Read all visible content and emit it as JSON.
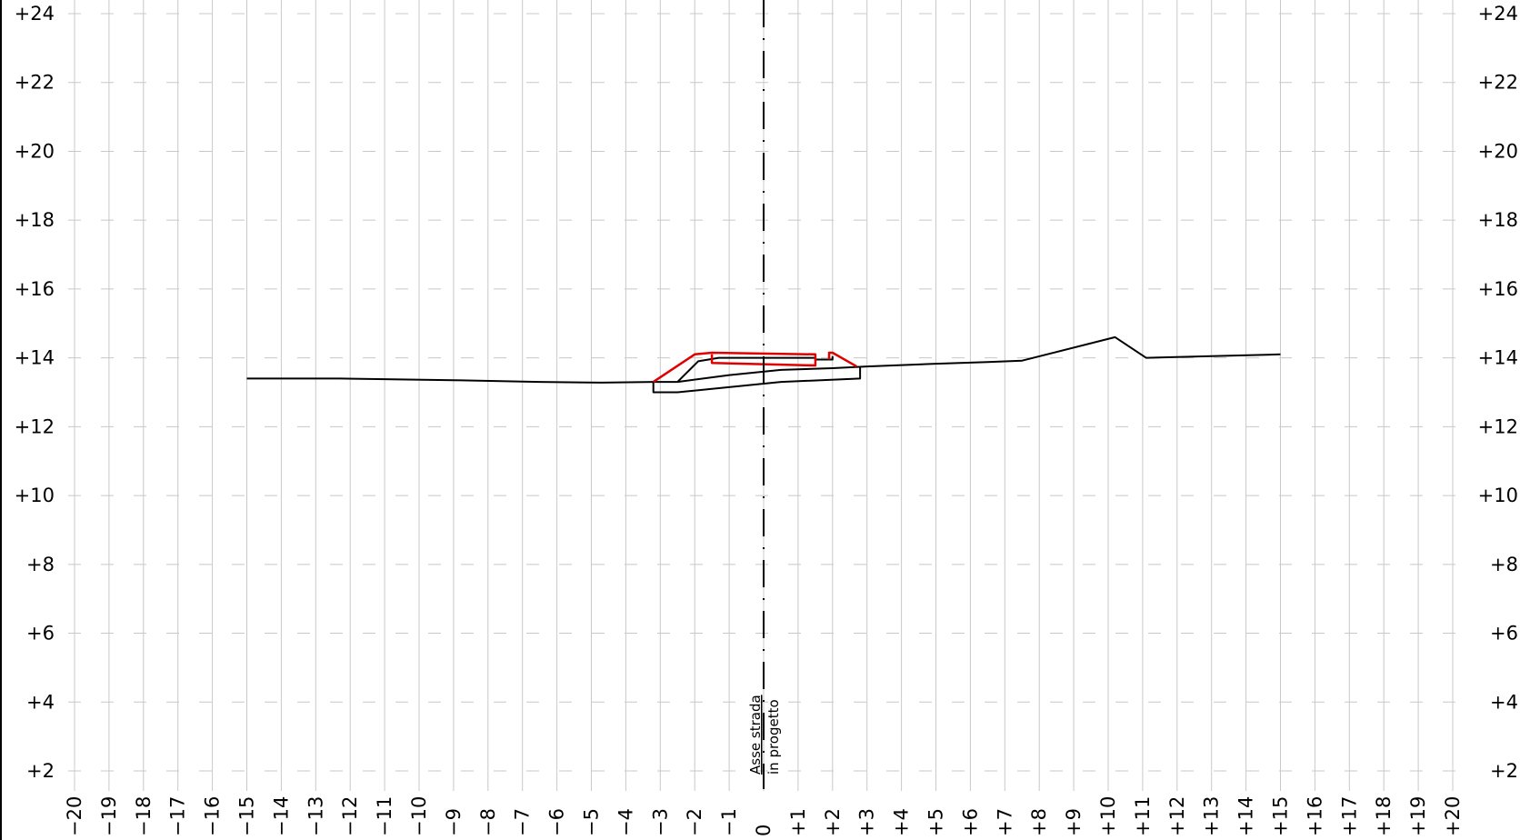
{
  "chart_data": {
    "type": "line",
    "title": "",
    "xlabel": "",
    "ylabel": "",
    "xlim": [
      -20,
      20
    ],
    "ylim": [
      2,
      24
    ],
    "grid": true,
    "x_tick_labels": [
      "−20",
      "−19",
      "−18",
      "−17",
      "−16",
      "−15",
      "−14",
      "−13",
      "−12",
      "−11",
      "−10",
      "−9",
      "−8",
      "−7",
      "−6",
      "−5",
      "−4",
      "−3",
      "−2",
      "−1",
      "0",
      "+1",
      "+2",
      "+3",
      "+4",
      "+5",
      "+6",
      "+7",
      "+8",
      "+9",
      "+10",
      "+11",
      "+12",
      "+13",
      "+14",
      "+15",
      "+16",
      "+17",
      "+18",
      "+19",
      "+20"
    ],
    "y_tick_labels": [
      "+2",
      "+4",
      "+6",
      "+8",
      "+10",
      "+12",
      "+14",
      "+16",
      "+18",
      "+20",
      "+22",
      "+24"
    ],
    "axis_label_lines": [
      "Asse strada",
      "in progetto"
    ],
    "colors": {
      "grid": "#c8c8c8",
      "existing": "#000000",
      "project": "#e00000",
      "axis": "#000000"
    },
    "series": [
      {
        "color": "#000000",
        "points": [
          [
            -15.0,
            13.4
          ],
          [
            -12.3,
            13.4
          ],
          [
            -11.0,
            13.38
          ],
          [
            -9.0,
            13.35
          ],
          [
            -6.5,
            13.3
          ],
          [
            -4.7,
            13.28
          ],
          [
            -3.2,
            13.3
          ],
          [
            -2.5,
            13.3
          ],
          [
            -1.0,
            13.5
          ],
          [
            0.5,
            13.65
          ],
          [
            2.0,
            13.7
          ],
          [
            3.0,
            13.75
          ],
          [
            5.0,
            13.83
          ],
          [
            6.5,
            13.88
          ],
          [
            7.5,
            13.92
          ],
          [
            10.2,
            14.6
          ],
          [
            11.1,
            14.0
          ],
          [
            13.0,
            14.05
          ],
          [
            15.0,
            14.1
          ]
        ]
      },
      {
        "color": "#000000",
        "points": [
          [
            -3.2,
            13.3
          ],
          [
            -3.2,
            13.0
          ],
          [
            -2.5,
            13.0
          ],
          [
            0.5,
            13.3
          ],
          [
            2.8,
            13.4
          ],
          [
            2.8,
            13.75
          ]
        ]
      },
      {
        "color": "#000000",
        "points": [
          [
            -2.5,
            13.3
          ],
          [
            -1.9,
            13.9
          ],
          [
            -1.3,
            14.0
          ],
          [
            1.5,
            14.0
          ],
          [
            1.5,
            13.95
          ],
          [
            2.0,
            13.95
          ],
          [
            2.0,
            14.05
          ]
        ]
      },
      {
        "color": "#e00000",
        "points": [
          [
            -3.2,
            13.3
          ],
          [
            -2.0,
            14.1
          ],
          [
            -1.5,
            14.15
          ],
          [
            1.5,
            14.1
          ],
          [
            1.5,
            13.78
          ],
          [
            -1.5,
            13.85
          ],
          [
            -1.5,
            14.1
          ]
        ]
      },
      {
        "color": "#e00000",
        "points": [
          [
            1.9,
            13.95
          ],
          [
            1.9,
            14.15
          ],
          [
            2.0,
            14.15
          ],
          [
            2.7,
            13.75
          ]
        ]
      }
    ]
  }
}
